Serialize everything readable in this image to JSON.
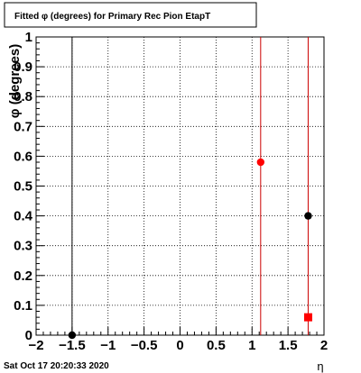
{
  "chart_data": {
    "type": "scatter",
    "title": "Fitted φ (degrees) for Primary Rec Pion EtapT",
    "xlabel": "η",
    "ylabel": "φ (degrees)",
    "xlim": [
      -2,
      2
    ],
    "ylim": [
      0,
      1
    ],
    "x_ticks": [
      -2,
      -1.5,
      -1,
      -0.5,
      0,
      0.5,
      1,
      1.5,
      2
    ],
    "x_tick_labels": [
      "−2",
      "−1.5",
      "−1",
      "−0.5",
      "0",
      "0.5",
      "1",
      "1.5",
      "2"
    ],
    "y_ticks": [
      0,
      0.1,
      0.2,
      0.3,
      0.4,
      0.5,
      0.6,
      0.7,
      0.8,
      0.9,
      1
    ],
    "y_tick_labels": [
      "0",
      "0.1",
      "0.2",
      "0.3",
      "0.4",
      "0.5",
      "0.6",
      "0.7",
      "0.8",
      "0.9",
      "1"
    ],
    "grid": true,
    "vertical_lines": [
      {
        "x": -1.5,
        "color": "#000000"
      },
      {
        "x": 1.12,
        "color": "#cc0000"
      },
      {
        "x": 1.78,
        "color": "#cc0000"
      }
    ],
    "series": [
      {
        "marker": "circle",
        "color": "#000000",
        "points": [
          {
            "x": -1.5,
            "y": 0.0
          },
          {
            "x": 1.78,
            "y": 0.4
          }
        ]
      },
      {
        "marker": "circle",
        "color": "#ff0000",
        "points": [
          {
            "x": 1.12,
            "y": 0.58
          }
        ]
      },
      {
        "marker": "square",
        "color": "#ff0000",
        "points": [
          {
            "x": 1.78,
            "y": 0.06
          }
        ]
      }
    ]
  },
  "footer": {
    "date": "Sat Oct 17 20:20:33 2020"
  }
}
